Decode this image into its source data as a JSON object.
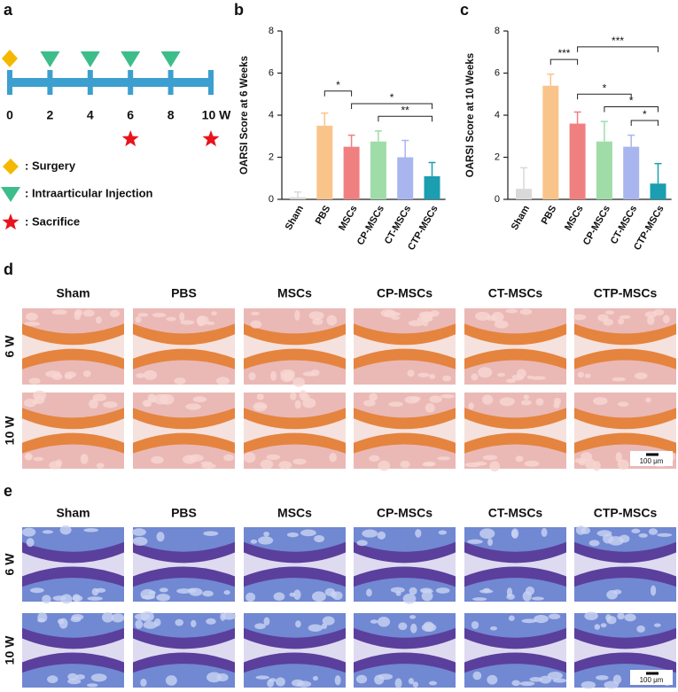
{
  "panel_a": {
    "label": "a",
    "ticks": [
      0,
      2,
      4,
      6,
      8,
      {
        "value": 10,
        "label": "10 W"
      }
    ],
    "surgery": [
      0
    ],
    "injection": [
      2,
      4,
      6,
      8
    ],
    "sacrifice": [
      6,
      10
    ],
    "legend": [
      ": Surgery",
      ": Intraarticular Injection",
      ": Sacrifice"
    ],
    "colors": {
      "timeline": "#3d9fcf",
      "surgery": "#f5b800",
      "injection": "#3dbd8a",
      "sacrifice": "#e8141c"
    }
  },
  "chart_data": [
    {
      "type": "bar",
      "panel_label": "b",
      "y_label": "OARSI Score at 6 Weeks",
      "categories": [
        "Sham",
        "PBS",
        "MSCs",
        "CP-MSCs",
        "CT-MSCs",
        "CTP-MSCs"
      ],
      "values": [
        0.1,
        3.5,
        2.5,
        2.75,
        2.0,
        1.1
      ],
      "errors": [
        0.25,
        0.6,
        0.55,
        0.5,
        0.8,
        0.65
      ],
      "colors": [
        "#d9d9d9",
        "#f9c48a",
        "#f08080",
        "#9fdca8",
        "#a9b5ee",
        "#1a9eb0"
      ],
      "ylim": [
        0,
        8
      ],
      "yticks": [
        0,
        2,
        4,
        6,
        8
      ],
      "annotations": [
        {
          "from": 3,
          "to": 5,
          "label": "**"
        },
        {
          "from": 2,
          "to": 5,
          "label": "*"
        },
        {
          "from": 1,
          "to": 2,
          "label": "*"
        }
      ]
    },
    {
      "type": "bar",
      "panel_label": "c",
      "y_label": "OARSI Score at 10 Weeks",
      "categories": [
        "Sham",
        "PBS",
        "MSCs",
        "CP-MSCs",
        "CT-MSCs",
        "CTP-MSCs"
      ],
      "values": [
        0.5,
        5.4,
        3.6,
        2.75,
        2.5,
        0.75
      ],
      "errors": [
        1.0,
        0.55,
        0.55,
        0.95,
        0.55,
        0.95
      ],
      "colors": [
        "#d9d9d9",
        "#f9c48a",
        "#f08080",
        "#9fdca8",
        "#a9b5ee",
        "#1a9eb0"
      ],
      "ylim": [
        0,
        8
      ],
      "yticks": [
        0,
        2,
        4,
        6,
        8
      ],
      "annotations": [
        {
          "from": 4,
          "to": 5,
          "label": "*"
        },
        {
          "from": 3,
          "to": 5,
          "label": "*"
        },
        {
          "from": 2,
          "to": 4,
          "label": "*"
        },
        {
          "from": 1,
          "to": 2,
          "label": "***"
        },
        {
          "from": 2,
          "to": 5,
          "label": "***"
        }
      ]
    }
  ],
  "panel_d": {
    "label": "d",
    "columns": [
      "Sham",
      "PBS",
      "MSCs",
      "CP-MSCs",
      "CT-MSCs",
      "CTP-MSCs"
    ],
    "rows": [
      "6 W",
      "10 W"
    ],
    "scale_bar": "100 μm"
  },
  "panel_e": {
    "label": "e",
    "columns": [
      "Sham",
      "PBS",
      "MSCs",
      "CP-MSCs",
      "CT-MSCs",
      "CTP-MSCs"
    ],
    "rows": [
      "6 W",
      "10 W"
    ],
    "scale_bar": "100 μm"
  }
}
